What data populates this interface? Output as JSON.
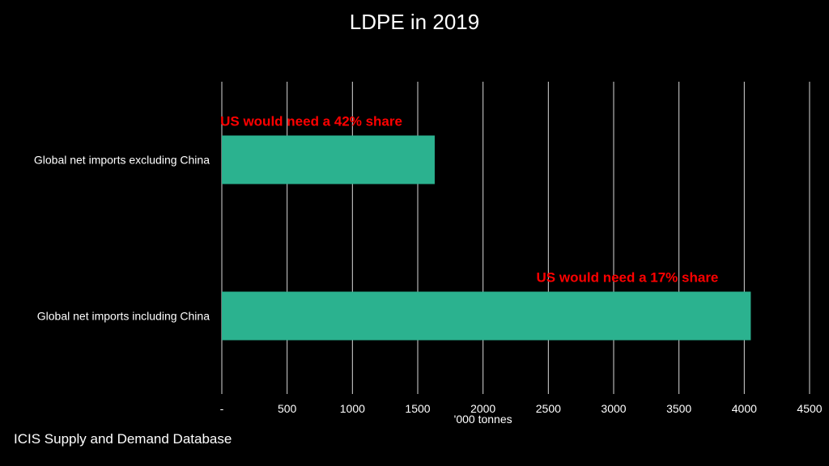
{
  "chart_data": {
    "type": "bar",
    "orientation": "horizontal",
    "title": "LDPE in 2019",
    "categories": [
      "Global net imports excluding China",
      "Global net imports including China"
    ],
    "values": [
      1630,
      4050
    ],
    "xlabel": "'000 tonnes",
    "ylabel": "",
    "xlim": [
      0,
      4500
    ],
    "xticks": [
      0,
      500,
      1000,
      1500,
      2000,
      2500,
      3000,
      3500,
      4000,
      4500
    ],
    "xtick_labels": [
      "-",
      "500",
      "1000",
      "1500",
      "2000",
      "2500",
      "3000",
      "3500",
      "4000",
      "4500"
    ],
    "grid": "vertical",
    "annotations": [
      "US would need a 42% share",
      "US would need a 17% share"
    ],
    "colors": {
      "bar": "#2bb28f",
      "annotation": "#ff0000",
      "grid": "#d9d9d9",
      "text": "#ffffff",
      "background": "#000000"
    }
  },
  "source": "ICIS Supply and Demand Database"
}
